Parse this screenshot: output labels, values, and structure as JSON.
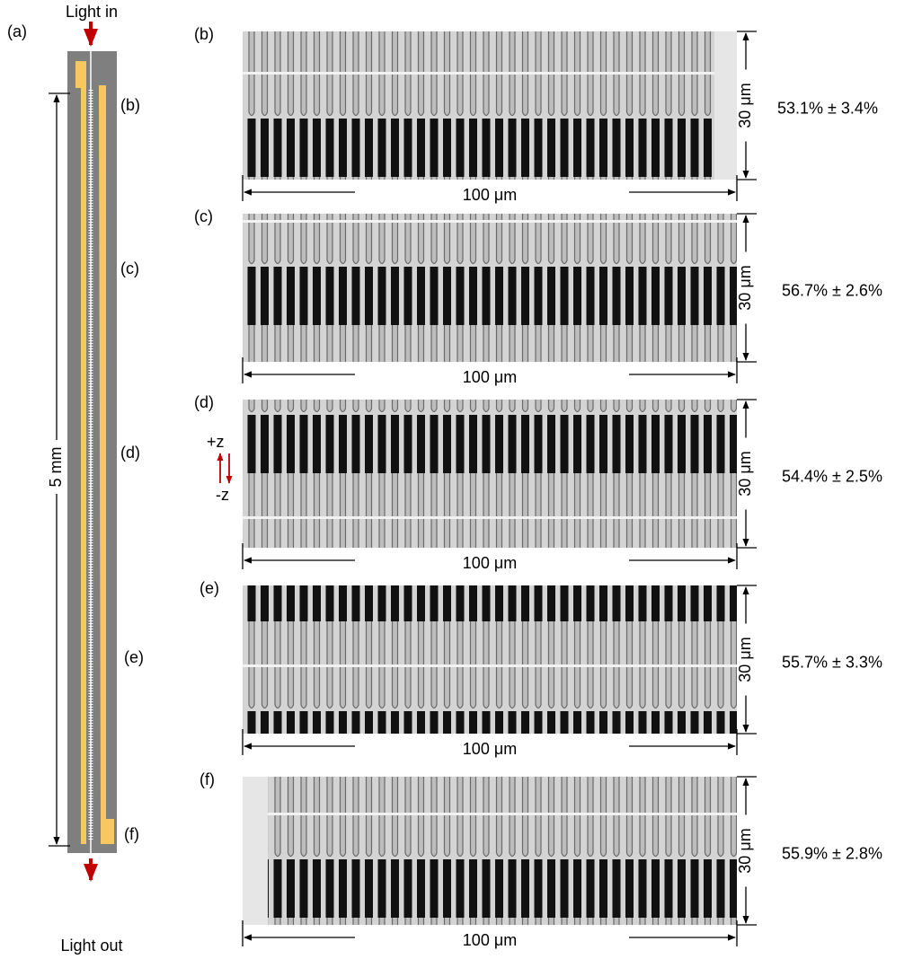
{
  "device": {
    "label": "(a)",
    "light_in": "Light in",
    "light_out": "Light out",
    "length": "5 mm",
    "positions": [
      "(b)",
      "(c)",
      "(d)",
      "(e)",
      "(f)"
    ]
  },
  "panels": [
    {
      "label": "(b)",
      "width": "100 μm",
      "height": "30 μm",
      "fill_factor": "53.1% ± 3.4%"
    },
    {
      "label": "(c)",
      "width": "100 μm",
      "height": "30 μm",
      "fill_factor": "56.7% ± 2.6%"
    },
    {
      "label": "(d)",
      "width": "100 μm",
      "height": "30 μm",
      "fill_factor": "54.4% ± 2.5%"
    },
    {
      "label": "(e)",
      "width": "100 μm",
      "height": "30 μm",
      "fill_factor": "55.7% ± 3.3%"
    },
    {
      "label": "(f)",
      "width": "100 μm",
      "height": "30 μm",
      "fill_factor": "55.9% ± 2.8%"
    }
  ],
  "axis": {
    "plus": "+z",
    "minus": "-z"
  }
}
